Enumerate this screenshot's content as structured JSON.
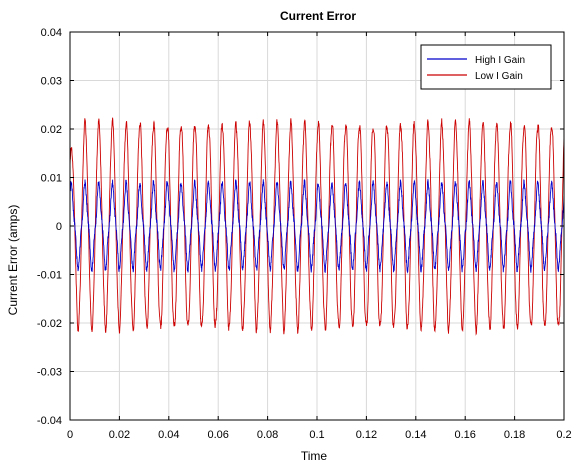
{
  "chart_data": {
    "type": "line",
    "title": "Current Error",
    "xlabel": "Time",
    "ylabel": "Current Error (amps)",
    "xlim": [
      0,
      0.2
    ],
    "ylim": [
      -0.04,
      0.04
    ],
    "xticks": [
      0,
      0.02,
      0.04,
      0.06,
      0.08,
      0.1,
      0.12,
      0.14,
      0.16,
      0.18,
      0.2
    ],
    "xtick_labels": [
      "0",
      "0.02",
      "0.04",
      "0.06",
      "0.08",
      "0.1",
      "0.12",
      "0.14",
      "0.16",
      "0.18",
      "0.2"
    ],
    "yticks": [
      -0.04,
      -0.03,
      -0.02,
      -0.01,
      0,
      0.01,
      0.02,
      0.03,
      0.04
    ],
    "ytick_labels": [
      "-0.04",
      "-0.03",
      "-0.02",
      "-0.01",
      "0",
      "0.01",
      "0.02",
      "0.03",
      "0.04"
    ],
    "grid": true,
    "legend_position": "top-right",
    "series": [
      {
        "name": "High I Gain",
        "color": "#0000cc",
        "frequency_hz": 180,
        "amplitude": 0.0078,
        "offset": 0.0,
        "x": [
          0,
          0.02,
          0.04,
          0.06,
          0.08,
          0.1,
          0.12,
          0.14,
          0.16,
          0.18,
          0.2
        ],
        "envelope_max": [
          0.008,
          0.008,
          0.008,
          0.008,
          0.008,
          0.008,
          0.008,
          0.008,
          0.008,
          0.008,
          0.008
        ],
        "envelope_min": [
          -0.008,
          -0.008,
          -0.008,
          -0.008,
          -0.008,
          -0.008,
          -0.008,
          -0.008,
          -0.008,
          -0.008,
          -0.008
        ]
      },
      {
        "name": "Low I Gain",
        "color": "#cc0000",
        "frequency_hz": 180,
        "amplitude": 0.021,
        "offset": 0.0,
        "x": [
          0,
          0.02,
          0.04,
          0.06,
          0.08,
          0.1,
          0.12,
          0.14,
          0.16,
          0.18,
          0.2
        ],
        "envelope_max": [
          0.021,
          0.021,
          0.021,
          0.021,
          0.021,
          0.021,
          0.021,
          0.021,
          0.021,
          0.021,
          0.021
        ],
        "envelope_min": [
          -0.021,
          -0.021,
          -0.021,
          -0.021,
          -0.021,
          -0.021,
          -0.021,
          -0.021,
          -0.021,
          -0.021,
          -0.021
        ]
      }
    ]
  }
}
